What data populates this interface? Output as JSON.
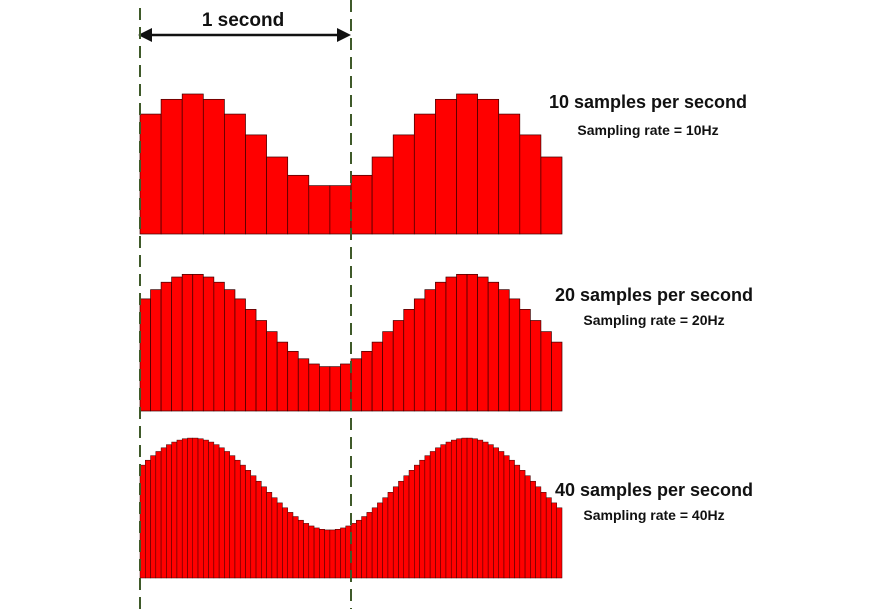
{
  "interval_label": "1 second",
  "panels": [
    {
      "title": "10 samples per second",
      "subtitle": "Sampling rate = 10Hz",
      "samples_per_second": 10
    },
    {
      "title": "20 samples per second",
      "subtitle": "Sampling rate = 20Hz",
      "samples_per_second": 20
    },
    {
      "title": "40 samples per second",
      "subtitle": "Sampling rate = 40Hz",
      "samples_per_second": 40
    }
  ],
  "colors": {
    "bar_fill": "#ff0000",
    "bar_stroke": "#3a0000",
    "guide_line": "#3f5a2a",
    "arrow": "#111111",
    "text": "#111111"
  }
}
